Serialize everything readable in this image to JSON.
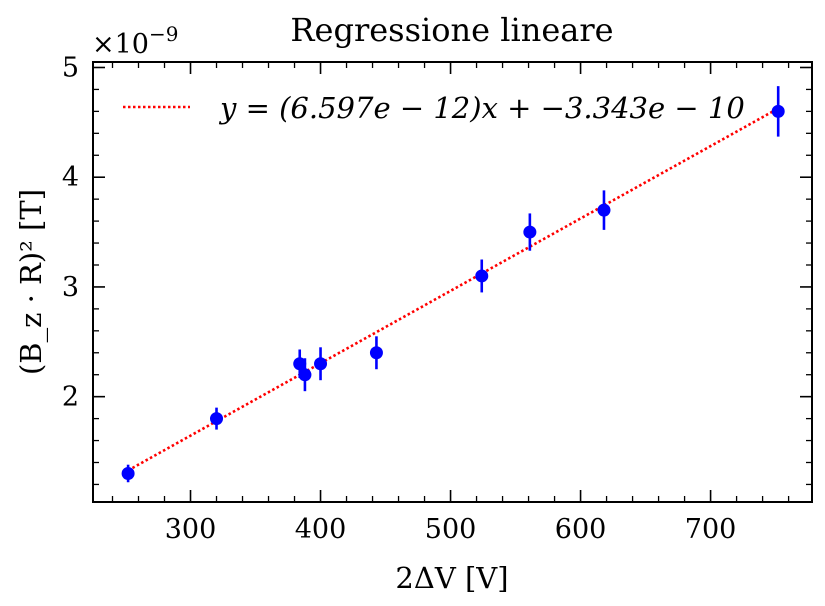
{
  "chart_data": {
    "type": "scatter",
    "title": "Regressione lineare",
    "xlabel": "2ΔV [V]",
    "ylabel": "(B_z · R)² [T]",
    "y_offset_label": "×10",
    "y_offset_exponent": "−9",
    "xlim": [
      225,
      778
    ],
    "ylim": [
      1.04,
      5.05
    ],
    "x_ticks": [
      300,
      400,
      500,
      600,
      700
    ],
    "y_ticks": [
      2,
      3,
      4,
      5
    ],
    "x_minor_step": 20,
    "y_minor_step": 0.2,
    "grid": false,
    "legend_position": "top-left",
    "colors": {
      "points": "#0000ff",
      "fit": "#ff0000"
    },
    "points": [
      {
        "x": 252,
        "y": 1.3,
        "err": 0.08
      },
      {
        "x": 320,
        "y": 1.8,
        "err": 0.1
      },
      {
        "x": 384,
        "y": 2.3,
        "err": 0.13
      },
      {
        "x": 388,
        "y": 2.2,
        "err": 0.15
      },
      {
        "x": 400,
        "y": 2.3,
        "err": 0.15
      },
      {
        "x": 443,
        "y": 2.4,
        "err": 0.15
      },
      {
        "x": 524,
        "y": 3.1,
        "err": 0.15
      },
      {
        "x": 561,
        "y": 3.5,
        "err": 0.17
      },
      {
        "x": 618,
        "y": 3.7,
        "err": 0.18
      },
      {
        "x": 752,
        "y": 4.6,
        "err": 0.23
      }
    ],
    "fit": {
      "label": "y = (6.597e − 12)x + −3.343e − 10",
      "slope": 6.597e-12,
      "intercept": -3.343e-10,
      "scale": 1e-09,
      "x_start": 252,
      "x_end": 752
    }
  }
}
